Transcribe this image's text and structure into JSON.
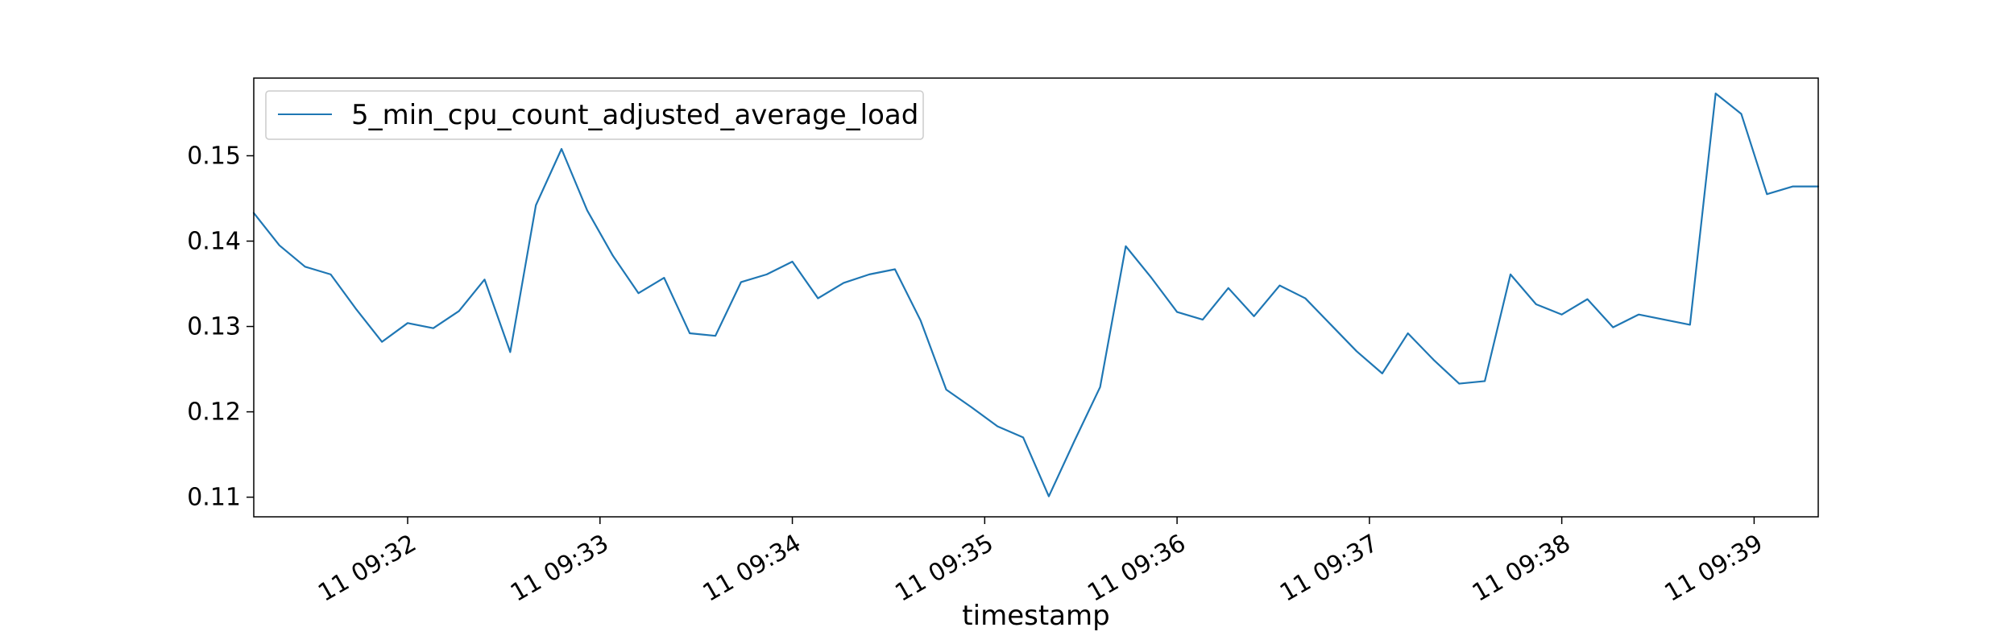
{
  "chart_data": {
    "type": "line",
    "title": "",
    "xlabel": "timestamp",
    "ylabel": "",
    "grid": false,
    "legend_position": "upper-left",
    "xlim": [
      "09:31:12",
      "09:39:20"
    ],
    "ylim": [
      0.1077,
      0.1591
    ],
    "x_ticks": [
      {
        "time": "09:32:00",
        "label": "11 09:32"
      },
      {
        "time": "09:33:00",
        "label": "11 09:33"
      },
      {
        "time": "09:34:00",
        "label": "11 09:34"
      },
      {
        "time": "09:35:00",
        "label": "11 09:35"
      },
      {
        "time": "09:36:00",
        "label": "11 09:36"
      },
      {
        "time": "09:37:00",
        "label": "11 09:37"
      },
      {
        "time": "09:38:00",
        "label": "11 09:38"
      },
      {
        "time": "09:39:00",
        "label": "11 09:39"
      }
    ],
    "y_ticks": [
      {
        "value": 0.11,
        "label": "0.11"
      },
      {
        "value": 0.12,
        "label": "0.12"
      },
      {
        "value": 0.13,
        "label": "0.13"
      },
      {
        "value": 0.14,
        "label": "0.14"
      },
      {
        "value": 0.15,
        "label": "0.15"
      }
    ],
    "series": [
      {
        "name": "5_min_cpu_count_adjusted_average_load",
        "color": "#1f77b4",
        "x": [
          "09:31:12",
          "09:31:20",
          "09:31:28",
          "09:31:36",
          "09:31:44",
          "09:31:52",
          "09:32:00",
          "09:32:08",
          "09:32:16",
          "09:32:24",
          "09:32:32",
          "09:32:40",
          "09:32:48",
          "09:32:56",
          "09:33:04",
          "09:33:12",
          "09:33:20",
          "09:33:28",
          "09:33:36",
          "09:33:44",
          "09:33:52",
          "09:34:00",
          "09:34:08",
          "09:34:16",
          "09:34:24",
          "09:34:32",
          "09:34:40",
          "09:34:48",
          "09:34:56",
          "09:35:04",
          "09:35:12",
          "09:35:20",
          "09:35:28",
          "09:35:36",
          "09:35:44",
          "09:35:52",
          "09:36:00",
          "09:36:08",
          "09:36:16",
          "09:36:24",
          "09:36:32",
          "09:36:40",
          "09:36:48",
          "09:36:56",
          "09:37:04",
          "09:37:12",
          "09:37:20",
          "09:37:28",
          "09:37:36",
          "09:37:44",
          "09:37:52",
          "09:38:00",
          "09:38:08",
          "09:38:16",
          "09:38:24",
          "09:38:32",
          "09:38:40",
          "09:38:48",
          "09:38:56",
          "09:39:04",
          "09:39:12",
          "09:39:20"
        ],
        "values": [
          0.1433,
          0.1395,
          0.137,
          0.1361,
          0.132,
          0.1282,
          0.1304,
          0.1298,
          0.1318,
          0.1355,
          0.127,
          0.1442,
          0.1508,
          0.1436,
          0.1383,
          0.1339,
          0.1357,
          0.1292,
          0.1289,
          0.1352,
          0.1361,
          0.1376,
          0.1333,
          0.1351,
          0.1361,
          0.1367,
          0.1307,
          0.1226,
          0.1205,
          0.1183,
          0.117,
          0.1101,
          0.1166,
          0.1229,
          0.1394,
          0.1357,
          0.1317,
          0.1308,
          0.1345,
          0.1312,
          0.1348,
          0.1333,
          0.1302,
          0.1271,
          0.1245,
          0.1292,
          0.1261,
          0.1233,
          0.1236,
          0.1361,
          0.1326,
          0.1314,
          0.1332,
          0.1299,
          0.1314,
          0.1308,
          0.1302,
          0.1573,
          0.1549,
          0.1455,
          0.1464,
          0.1464
        ]
      }
    ]
  }
}
